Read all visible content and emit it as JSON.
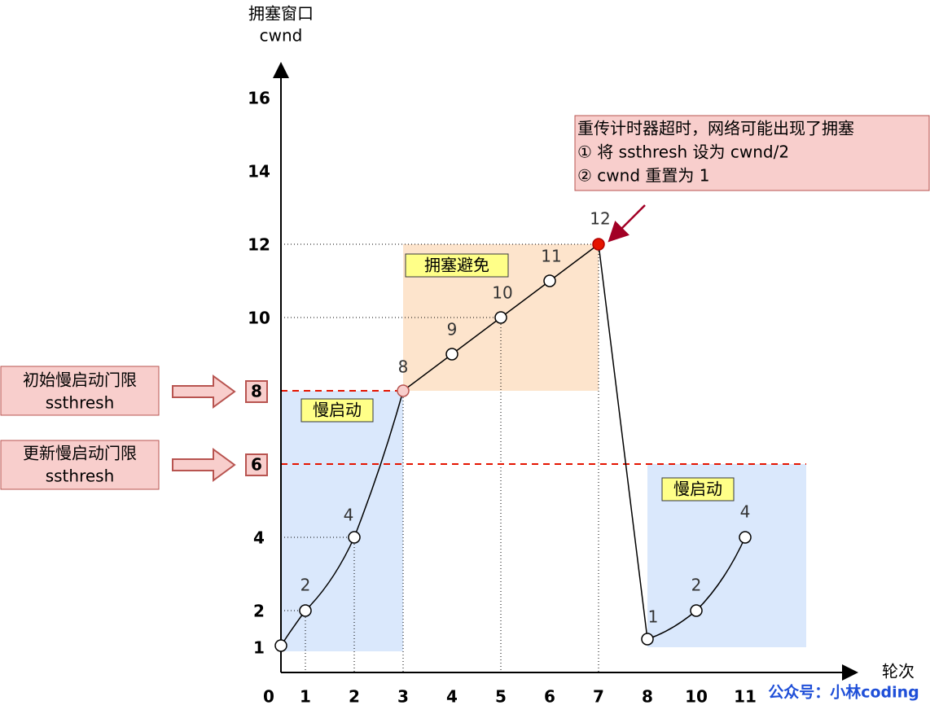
{
  "axis": {
    "y_title": "拥塞窗口",
    "y_unit": "cwnd",
    "x_title": "轮次",
    "y_ticks": [
      "16",
      "14",
      "12",
      "10",
      "8",
      "6",
      "4",
      "2",
      "1"
    ],
    "x_ticks": [
      "0",
      "1",
      "2",
      "3",
      "4",
      "5",
      "6",
      "7",
      "8",
      "10",
      "11"
    ]
  },
  "points": [
    "1",
    "2",
    "4",
    "8",
    "9",
    "10",
    "11",
    "12",
    "1",
    "2",
    "4"
  ],
  "regions": [
    "慢启动",
    "拥塞避免",
    "慢启动"
  ],
  "callouts": [
    {
      "lines": [
        "初始慢启动门限",
        "ssthresh"
      ]
    },
    {
      "lines": [
        "更新慢启动门限",
        "ssthresh"
      ]
    }
  ],
  "note": {
    "lines": [
      "重传计时器超时，网络可能出现了拥塞",
      "① 将 ssthresh 设为 cwnd/2",
      "② cwnd 重置为 1"
    ]
  },
  "watermark": "公众号：小林coding"
}
